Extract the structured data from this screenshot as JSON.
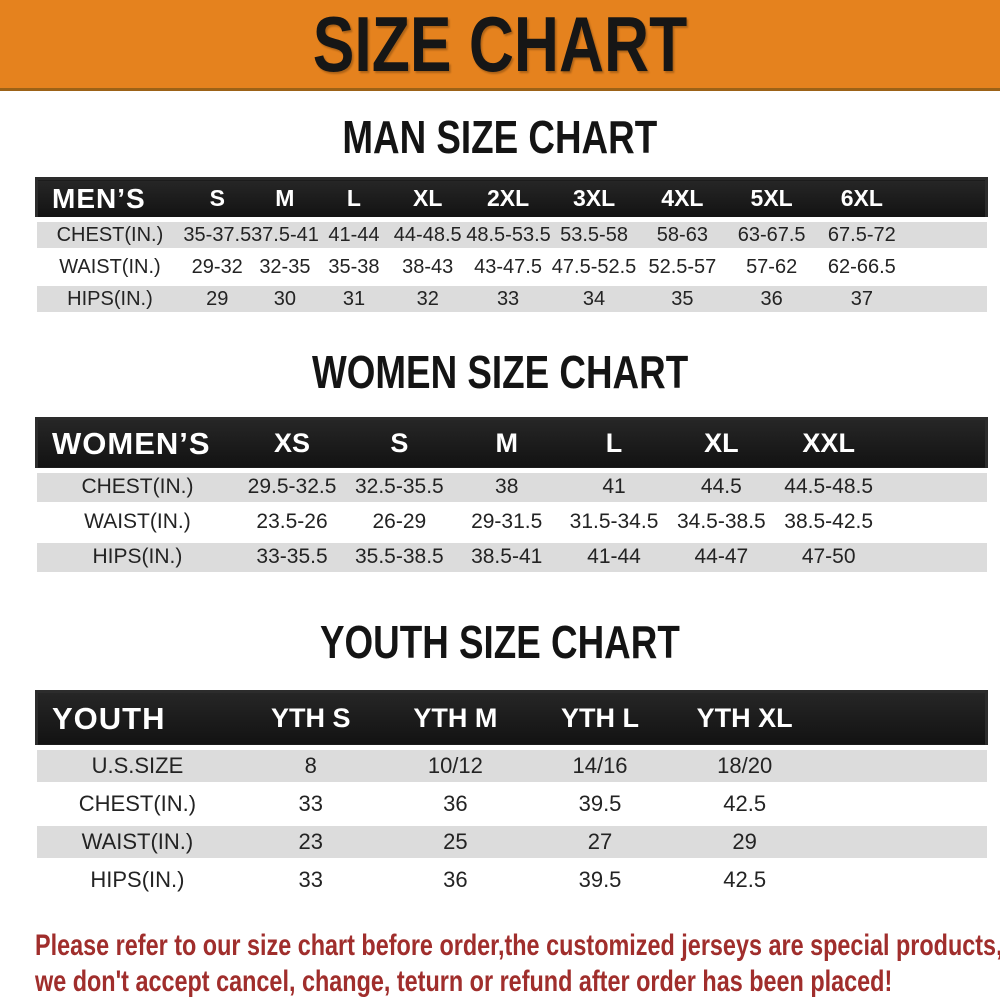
{
  "banner": {
    "title": "SIZE CHART",
    "bg_color": "#E5821E",
    "text_color": "#161616"
  },
  "sections": [
    {
      "heading": "MAN SIZE CHART"
    },
    {
      "heading": "WOMEN SIZE CHART"
    },
    {
      "heading": "YOUTH SIZE CHART"
    }
  ],
  "chart_data": [
    {
      "type": "table",
      "title": "MAN SIZE CHART",
      "corner_label": "MEN’S",
      "columns": [
        "S",
        "M",
        "L",
        "XL",
        "2XL",
        "3XL",
        "4XL",
        "5XL",
        "6XL"
      ],
      "rows": [
        {
          "label": "CHEST(IN.)",
          "values": [
            "35-37.5",
            "37.5-41",
            "41-44",
            "44-48.5",
            "48.5-53.5",
            "53.5-58",
            "58-63",
            "63-67.5",
            "67.5-72"
          ]
        },
        {
          "label": "WAIST(IN.)",
          "values": [
            "29-32",
            "32-35",
            "35-38",
            "38-43",
            "43-47.5",
            "47.5-52.5",
            "52.5-57",
            "57-62",
            "62-66.5"
          ]
        },
        {
          "label": "HIPS(IN.)",
          "values": [
            "29",
            "30",
            "31",
            "32",
            "33",
            "34",
            "35",
            "36",
            "37"
          ]
        }
      ]
    },
    {
      "type": "table",
      "title": "WOMEN SIZE CHART",
      "corner_label": "WOMEN’S",
      "columns": [
        "XS",
        "S",
        "M",
        "L",
        "XL",
        "XXL"
      ],
      "rows": [
        {
          "label": "CHEST(IN.)",
          "values": [
            "29.5-32.5",
            "32.5-35.5",
            "38",
            "41",
            "44.5",
            "44.5-48.5"
          ]
        },
        {
          "label": "WAIST(IN.)",
          "values": [
            "23.5-26",
            "26-29",
            "29-31.5",
            "31.5-34.5",
            "34.5-38.5",
            "38.5-42.5"
          ]
        },
        {
          "label": "HIPS(IN.)",
          "values": [
            "33-35.5",
            "35.5-38.5",
            "38.5-41",
            "41-44",
            "44-47",
            "47-50"
          ]
        }
      ]
    },
    {
      "type": "table",
      "title": "YOUTH SIZE CHART",
      "corner_label": "YOUTH",
      "columns": [
        "YTH S",
        "YTH M",
        "YTH L",
        "YTH XL"
      ],
      "rows": [
        {
          "label": "U.S.SIZE",
          "values": [
            "8",
            "10/12",
            "14/16",
            "18/20"
          ]
        },
        {
          "label": "CHEST(IN.)",
          "values": [
            "33",
            "36",
            "39.5",
            "42.5"
          ]
        },
        {
          "label": "WAIST(IN.)",
          "values": [
            "23",
            "25",
            "27",
            "29"
          ]
        },
        {
          "label": "HIPS(IN.)",
          "values": [
            "33",
            "36",
            "39.5",
            "42.5"
          ]
        }
      ]
    }
  ],
  "footer_note": {
    "line1": "Please refer to our size chart before order,the customized jerseys are special products,",
    "line2": "we don't accept cancel, change, teturn or refund after order has been placed!",
    "color": "#A02E2C"
  },
  "colors": {
    "banner_bg": "#E5821E",
    "header_bar": "#1A1A1A",
    "row_gray": "#DCDCDC",
    "note_red": "#A02E2C"
  }
}
